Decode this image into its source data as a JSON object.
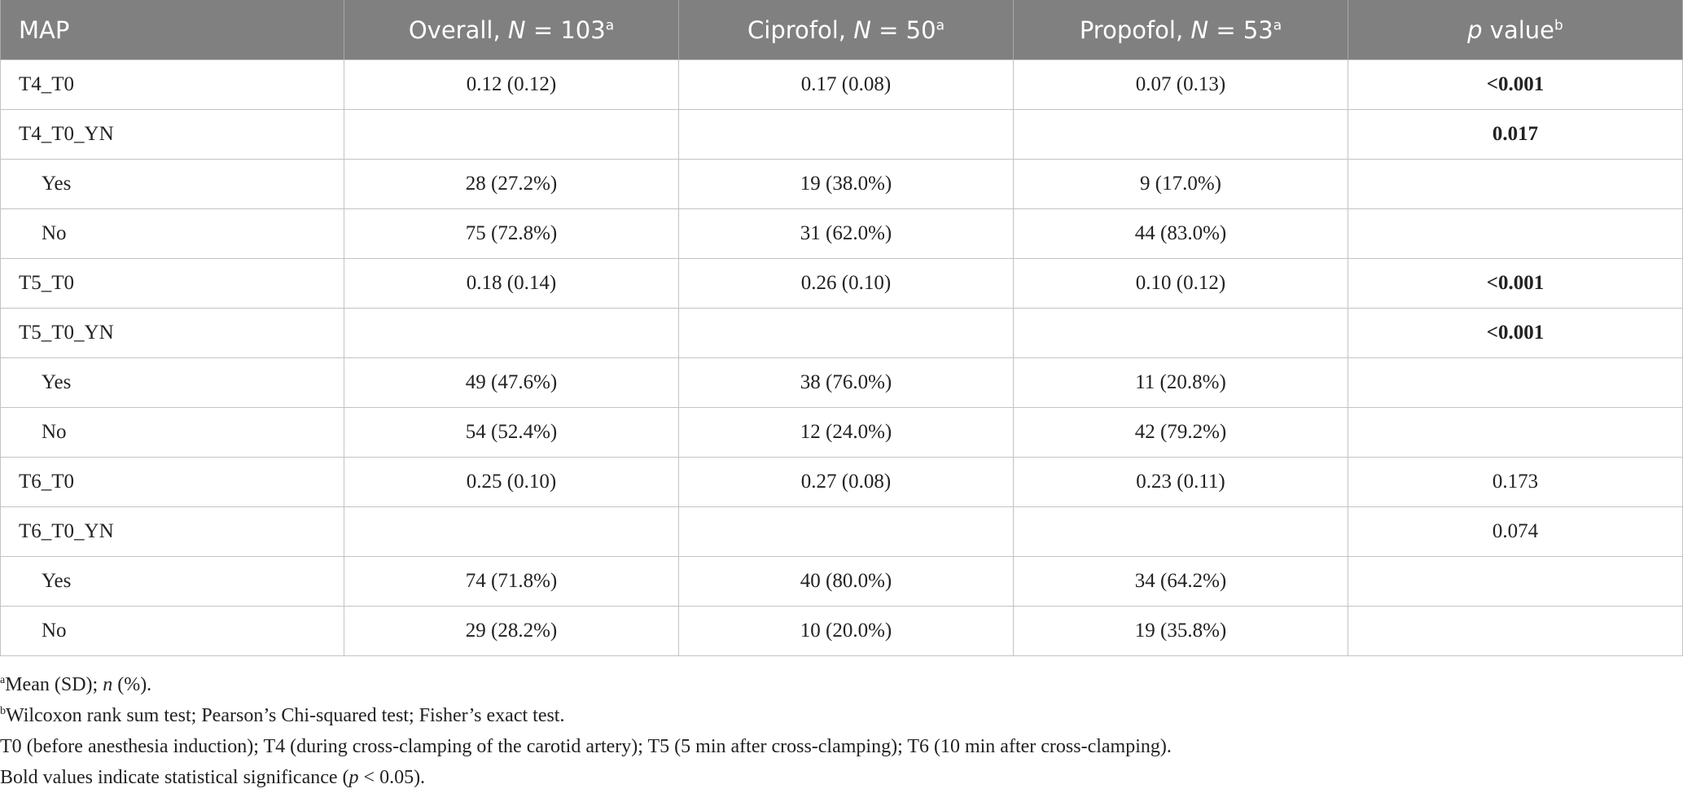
{
  "header": {
    "col0": "MAP",
    "overall": {
      "pre": "Overall, ",
      "n": "N",
      "post": " = 103",
      "sup": "a"
    },
    "ciprofol": {
      "pre": "Ciprofol, ",
      "n": "N",
      "post": " = 50",
      "sup": "a"
    },
    "propofol": {
      "pre": "Propofol, ",
      "n": "N",
      "post": " = 53",
      "sup": "a"
    },
    "pvalue": {
      "p": "p",
      "post": " value",
      "sup": "b"
    }
  },
  "rows": [
    {
      "label": "T4_T0",
      "indent": false,
      "overall": "0.12 (0.12)",
      "ciprofol": "0.17 (0.08)",
      "propofol": "0.07 (0.13)",
      "p": "<0.001",
      "bold": true
    },
    {
      "label": "T4_T0_YN",
      "indent": false,
      "overall": "",
      "ciprofol": "",
      "propofol": "",
      "p": "0.017",
      "bold": true
    },
    {
      "label": "Yes",
      "indent": true,
      "overall": "28 (27.2%)",
      "ciprofol": "19 (38.0%)",
      "propofol": "9 (17.0%)",
      "p": "",
      "bold": false
    },
    {
      "label": "No",
      "indent": true,
      "overall": "75 (72.8%)",
      "ciprofol": "31 (62.0%)",
      "propofol": "44 (83.0%)",
      "p": "",
      "bold": false
    },
    {
      "label": "T5_T0",
      "indent": false,
      "overall": "0.18 (0.14)",
      "ciprofol": "0.26 (0.10)",
      "propofol": "0.10 (0.12)",
      "p": "<0.001",
      "bold": true
    },
    {
      "label": "T5_T0_YN",
      "indent": false,
      "overall": "",
      "ciprofol": "",
      "propofol": "",
      "p": "<0.001",
      "bold": true
    },
    {
      "label": "Yes",
      "indent": true,
      "overall": "49 (47.6%)",
      "ciprofol": "38 (76.0%)",
      "propofol": "11 (20.8%)",
      "p": "",
      "bold": false
    },
    {
      "label": "No",
      "indent": true,
      "overall": "54 (52.4%)",
      "ciprofol": "12 (24.0%)",
      "propofol": "42 (79.2%)",
      "p": "",
      "bold": false
    },
    {
      "label": "T6_T0",
      "indent": false,
      "overall": "0.25 (0.10)",
      "ciprofol": "0.27 (0.08)",
      "propofol": "0.23 (0.11)",
      "p": "0.173",
      "bold": false
    },
    {
      "label": "T6_T0_YN",
      "indent": false,
      "overall": "",
      "ciprofol": "",
      "propofol": "",
      "p": "0.074",
      "bold": false
    },
    {
      "label": "Yes",
      "indent": true,
      "overall": "74 (71.8%)",
      "ciprofol": "40 (80.0%)",
      "propofol": "34 (64.2%)",
      "p": "",
      "bold": false
    },
    {
      "label": "No",
      "indent": true,
      "overall": "29 (28.2%)",
      "ciprofol": "10 (20.0%)",
      "propofol": "19 (35.8%)",
      "p": "",
      "bold": false
    }
  ],
  "footnotes": {
    "a": {
      "sup": "a",
      "pre": "Mean (SD); ",
      "it": "n",
      "post": " (%)."
    },
    "b": {
      "sup": "b",
      "text": "Wilcoxon rank sum test; Pearson’s Chi-squared test; Fisher’s exact test."
    },
    "times": "T0 (before anesthesia induction); T4 (during cross-clamping of the carotid artery); T5 (5 min after cross-clamping); T6 (10 min after cross-clamping).",
    "bold": {
      "pre": "Bold values indicate statistical significance (",
      "it": "p",
      "post": " < 0.05)."
    }
  },
  "colors": {
    "header_bg": "#7f807f",
    "header_text": "#ffffff",
    "border": "#c3c3c3"
  }
}
